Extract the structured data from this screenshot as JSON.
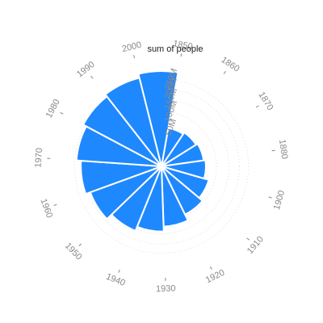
{
  "chart_data": {
    "type": "bar",
    "coordinate_system": "polar",
    "radius_axis_title": "sum of people",
    "categories": [
      "1850",
      "1860",
      "1870",
      "1880",
      "1900",
      "1910",
      "1920",
      "1930",
      "1940",
      "1950",
      "1960",
      "1970",
      "1980",
      "1990",
      "2000"
    ],
    "values": [
      50000000,
      55000000,
      60000000,
      65000000,
      80000000,
      95000000,
      120000000,
      140000000,
      160000000,
      190000000,
      215000000,
      240000000,
      260000000,
      275000000,
      300000000
    ],
    "radius_ticks": [
      "50M",
      "100M",
      "150M",
      "200M",
      "250M"
    ],
    "radius_tick_values": [
      50000000,
      100000000,
      150000000,
      200000000,
      250000000
    ],
    "angle_labels": [
      "1850",
      "1860",
      "1870",
      "1880",
      "1900",
      "1910",
      "1920",
      "1930",
      "1940",
      "1950",
      "1960",
      "1970",
      "1980",
      "1990",
      "2000"
    ],
    "bar_color": "#1e88ff",
    "grid": true,
    "legend": "none"
  }
}
